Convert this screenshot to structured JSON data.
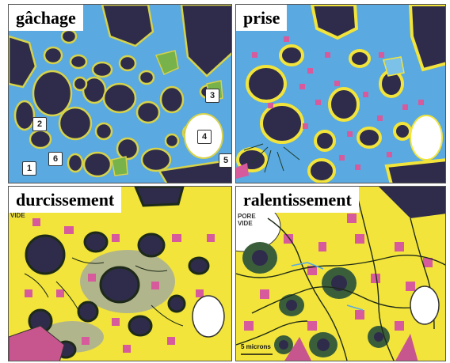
{
  "panels": [
    {
      "label": "gâchage",
      "colors": {
        "water": "#5aa9e0",
        "grain": "#2e2c4a",
        "product": "#d6d24a",
        "hydrate": "#78b24a"
      }
    },
    {
      "label": "prise",
      "colors": {
        "water": "#5aa9e0",
        "grain": "#2e2c4a",
        "product": "#f2e43a",
        "dots": "#d65a9c"
      }
    },
    {
      "label": "durcissement",
      "colors": {
        "water": "#7b8ecf",
        "grain": "#2e2c4a",
        "product": "#f2e43a",
        "dots": "#d65a9c"
      }
    },
    {
      "label": "ralentissement",
      "colors": {
        "product": "#f2e43a",
        "grain": "#2e2c4a",
        "ring": "#3b5e3a",
        "dots": "#d65a9c"
      }
    }
  ],
  "markers": [
    "1",
    "2",
    "3",
    "4",
    "5",
    "6"
  ],
  "annotations": {
    "pore_top_left": "VIDE",
    "pore_top_right_1": "PORE",
    "pore_top_right_2": "VIDE",
    "scale": "5 microns"
  }
}
